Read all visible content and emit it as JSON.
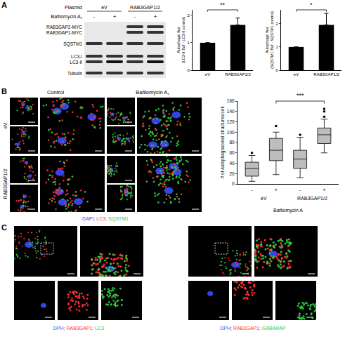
{
  "panel_labels": [
    "A",
    "B",
    "C"
  ],
  "blot": {
    "plasmid_label": "Plasmid",
    "plasmids": [
      "eV",
      "RAB3GAP1/2"
    ],
    "treatment_label": "Bafilomycin A₁",
    "lanes": [
      "-",
      "+",
      "-",
      "+"
    ],
    "rows": [
      {
        "label": "RAB3GAP2-MYC",
        "bands": [
          false,
          false,
          true,
          true
        ]
      },
      {
        "label": "RAB3GAP1-MYC",
        "bands": [
          false,
          false,
          true,
          true
        ]
      },
      {
        "label": "SQSTM1",
        "bands": [
          true,
          true,
          true,
          true
        ]
      },
      {
        "label": "LC3-I",
        "bands": [
          true,
          true,
          true,
          true
        ]
      },
      {
        "label": "LC3-II",
        "bands": [
          true,
          true,
          true,
          true
        ]
      },
      {
        "label": "Tubulin",
        "bands": [
          true,
          true,
          true,
          true
        ]
      }
    ]
  },
  "chart_data": [
    {
      "type": "bar",
      "y_label": [
        "Autophagic flux",
        "(LC3-II Baf - LC3-II control)"
      ],
      "categories": [
        "eV",
        "RAB3GAP1/2"
      ],
      "values": [
        1,
        1.65
      ],
      "errors": [
        0,
        0.25
      ],
      "color": "#000000",
      "ylim": [
        0,
        2.2
      ],
      "yticks": [
        0,
        1,
        2
      ],
      "significance": {
        "text": "**",
        "between": [
          "eV",
          "RAB3GAP1/2"
        ]
      }
    },
    {
      "type": "bar",
      "y_label": [
        "Autophagic flux",
        "(SQSTM1 Baf - SQSTM1 control)"
      ],
      "categories": [
        "eV",
        "RAB3GAP1/2"
      ],
      "values": [
        1,
        1.95
      ],
      "errors": [
        0,
        0.5
      ],
      "color": "#000000",
      "ylim": [
        0,
        2.6
      ],
      "yticks": [
        0,
        1,
        2
      ],
      "significance": {
        "text": "*",
        "between": [
          "eV",
          "RAB3GAP1/2"
        ]
      }
    },
    {
      "type": "box",
      "y_label": "# of autophagosomal structures/cell",
      "x_label": "Bafilomycin A",
      "categories": [
        "-",
        "+",
        "-",
        "+"
      ],
      "groups": [
        "eV",
        "eV",
        "RAB3GAP1/2",
        "RAB3GAP1/2"
      ],
      "q1": [
        15,
        45,
        30,
        78
      ],
      "median": [
        30,
        65,
        48,
        95
      ],
      "q3": [
        42,
        88,
        65,
        108
      ],
      "lower_whisker": [
        5,
        18,
        12,
        60
      ],
      "upper_whisker": [
        55,
        100,
        90,
        125
      ],
      "outliers": [
        [
          60
        ],
        [
          112
        ],
        [
          95
        ],
        [
          130,
          140,
          145
        ]
      ],
      "color": "#bdbdbd",
      "ylim": [
        0,
        160
      ],
      "yticks": [
        0,
        20,
        40,
        60,
        80,
        100,
        120,
        140,
        160
      ],
      "significance": {
        "text": "***",
        "between": [
          1,
          3
        ]
      }
    }
  ],
  "microscopy_B": {
    "columns": [
      "Control",
      "Bafilomycin A₁"
    ],
    "rows": [
      "eV",
      "RAB3GAP1/2"
    ],
    "stain_legend": [
      {
        "text": "DAPI;",
        "color": "#3a4dff"
      },
      {
        "text": "LC3;",
        "color": "#ff3030"
      },
      {
        "text": "SQSTM1",
        "color": "#2ecc40"
      }
    ]
  },
  "microscopy_C": [
    {
      "stains": [
        {
          "text": "DPH;",
          "color": "#3a4dff"
        },
        {
          "text": "RAB3GAP1;",
          "color": "#ff3030"
        },
        {
          "text": "LC3",
          "color": "#2ecc40"
        }
      ]
    },
    {
      "stains": [
        {
          "text": "DPH;",
          "color": "#3a4dff"
        },
        {
          "text": "RAB3GAP1;",
          "color": "#ff3030"
        },
        {
          "text": "GABARAP",
          "color": "#2ecc40"
        }
      ]
    }
  ]
}
